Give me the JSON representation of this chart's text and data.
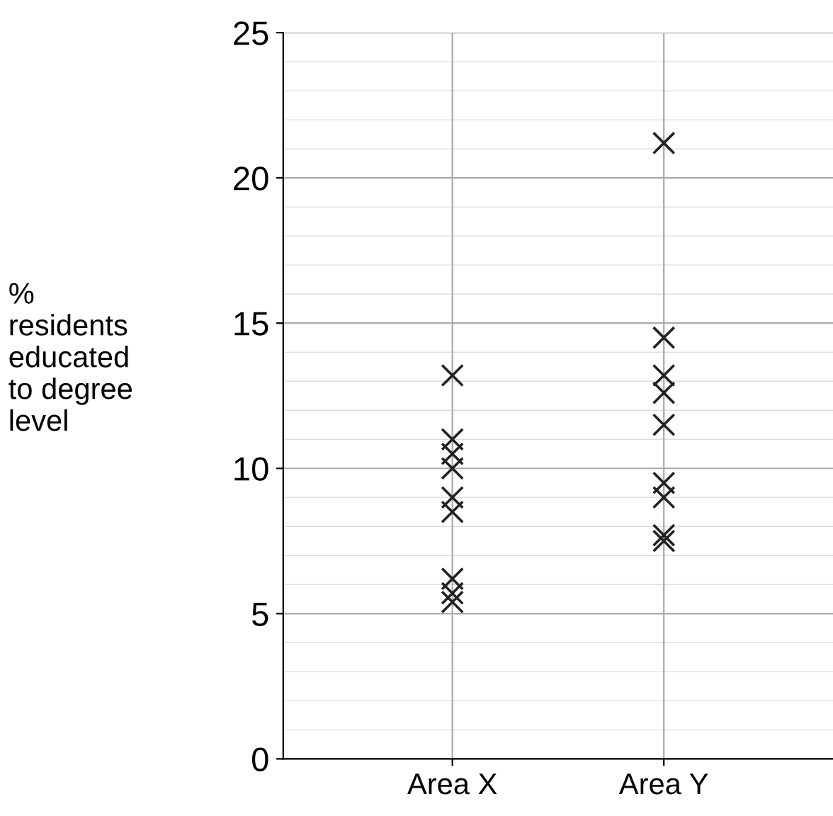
{
  "chart_data": {
    "type": "scatter",
    "ylabel": "%\nresidents\neducated\nto degree\nlevel",
    "categories": [
      "Area X",
      "Area Y"
    ],
    "series": [
      {
        "color": "#222222",
        "x": [
          "Area X",
          "Area X",
          "Area X",
          "Area X",
          "Area X",
          "Area X",
          "Area X",
          "Area X",
          "Area X"
        ],
        "values": [
          13.2,
          11.0,
          10.5,
          10.0,
          9.0,
          8.5,
          6.2,
          5.7,
          5.4
        ]
      },
      {
        "color": "#222222",
        "x": [
          "Area Y",
          "Area Y",
          "Area Y",
          "Area Y",
          "Area Y",
          "Area Y",
          "Area Y",
          "Area Y",
          "Area Y"
        ],
        "values": [
          21.2,
          14.5,
          13.2,
          12.6,
          11.5,
          9.5,
          9.0,
          7.7,
          7.5
        ]
      }
    ],
    "ylim": [
      0,
      25
    ],
    "yticks": [
      0,
      5,
      10,
      15,
      20,
      25
    ],
    "grid": true,
    "marker": "cross",
    "legend": false
  }
}
